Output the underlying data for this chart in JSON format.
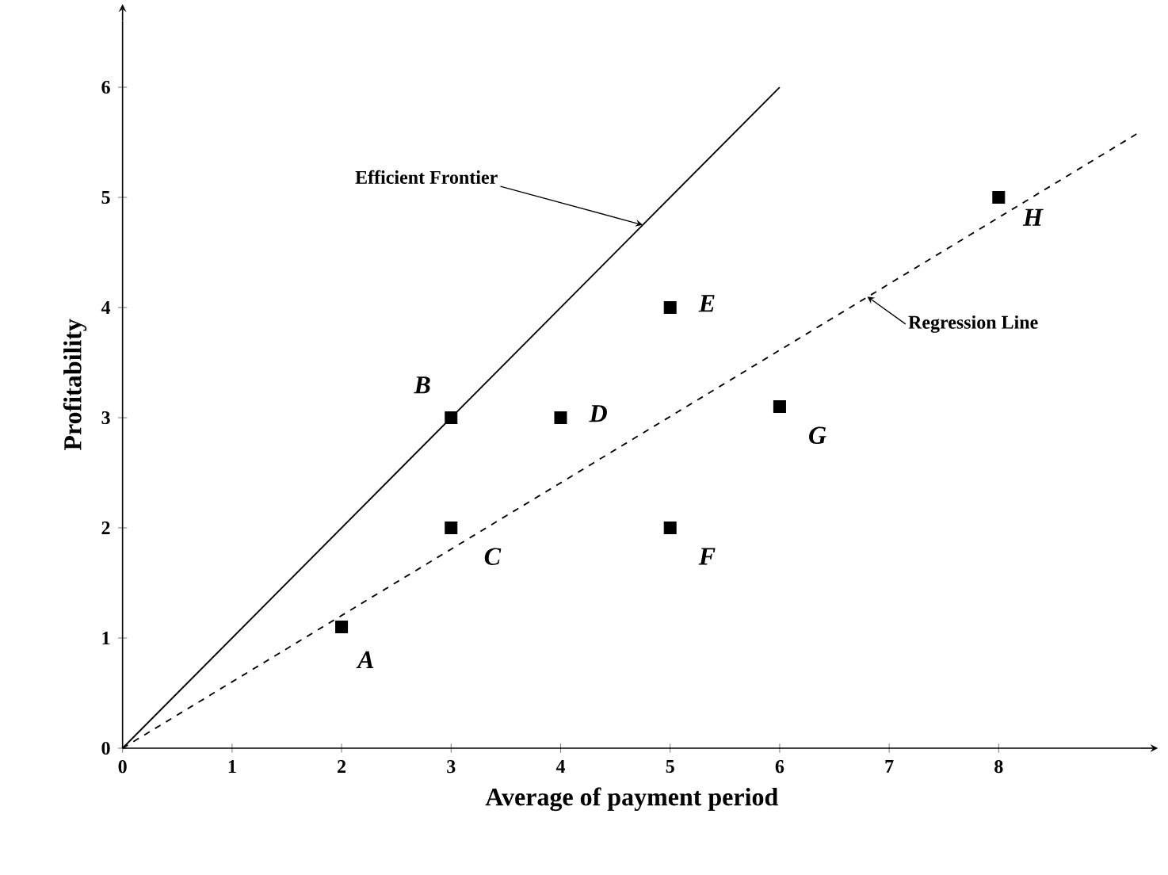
{
  "chart_data": {
    "type": "scatter",
    "xlabel": "Average of payment period",
    "ylabel": "Profitability",
    "xlim": [
      0,
      9.3
    ],
    "ylim": [
      0,
      6.6
    ],
    "xticks": [
      0,
      1,
      2,
      3,
      4,
      5,
      6,
      7,
      8
    ],
    "yticks": [
      0,
      1,
      2,
      3,
      4,
      5,
      6
    ],
    "grid": false,
    "series": [
      {
        "x": [
          2,
          3,
          3,
          4,
          5,
          5,
          6,
          8
        ],
        "values": [
          1.1,
          3,
          2,
          3,
          4,
          2,
          3.1,
          5
        ],
        "color": "#000000",
        "marker": "square"
      },
      {
        "type": "line",
        "x": [
          0,
          6
        ],
        "values": [
          0,
          6
        ],
        "color": "#000000",
        "line_style": "solid"
      },
      {
        "type": "line",
        "x": [
          0,
          9.3
        ],
        "values": [
          0,
          5.6
        ],
        "color": "#000000",
        "line_style": "dashed"
      }
    ],
    "annotations": [
      {
        "text": "A",
        "x": 2,
        "y": 1.1
      },
      {
        "text": "B",
        "x": 3,
        "y": 3
      },
      {
        "text": "C",
        "x": 3,
        "y": 2
      },
      {
        "text": "D",
        "x": 4,
        "y": 3
      },
      {
        "text": "E",
        "x": 5,
        "y": 4
      },
      {
        "text": "F",
        "x": 5,
        "y": 2
      },
      {
        "text": "G",
        "x": 6,
        "y": 3.1
      },
      {
        "text": "H",
        "x": 8,
        "y": 5
      },
      {
        "text": "Efficient Frontier",
        "x": 4.75,
        "y": 4.75
      },
      {
        "text": "Regression Line",
        "x": 6.8,
        "y": 4.1
      }
    ]
  }
}
